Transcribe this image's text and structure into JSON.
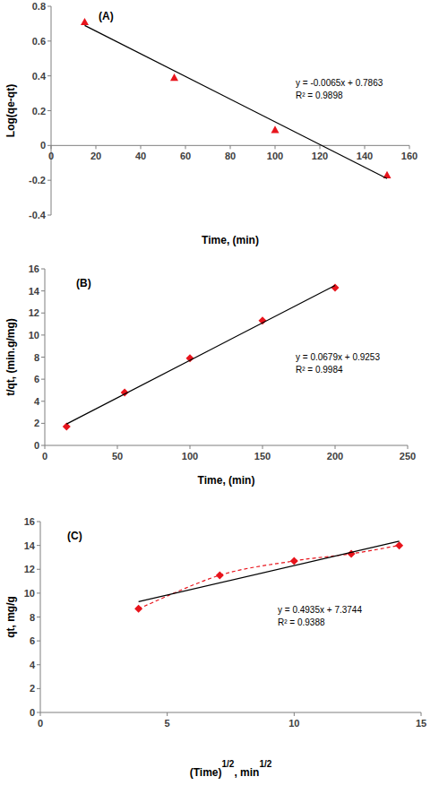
{
  "chart_data": [
    {
      "type": "scatter",
      "title": "(A)",
      "xlabel": "Time, (min)",
      "ylabel": "Log(qe-qt)",
      "xlim": [
        0,
        160
      ],
      "ylim": [
        -0.4,
        0.8
      ],
      "xticks": [
        0,
        20,
        40,
        60,
        80,
        100,
        120,
        140,
        160
      ],
      "yticks": [
        -0.4,
        -0.2,
        0,
        0.2,
        0.4,
        0.6,
        0.8
      ],
      "grid": false,
      "annotations": [
        "y = -0.0065x + 0.7863",
        "R² = 0.9898"
      ],
      "series": [
        {
          "type": "scatter",
          "marker": "triangle",
          "color": "#e8141c",
          "x": [
            15,
            55,
            100,
            150
          ],
          "values": [
            0.71,
            0.39,
            0.09,
            -0.17
          ]
        },
        {
          "type": "line",
          "line_style": "solid",
          "color": "#000000",
          "x": [
            15,
            150
          ],
          "values": [
            0.69,
            -0.19
          ]
        }
      ]
    },
    {
      "type": "scatter",
      "title": "(B)",
      "xlabel": "Time, (min)",
      "ylabel": "t/qt, (min.g/mg)",
      "xlim": [
        0,
        250
      ],
      "ylim": [
        0,
        16
      ],
      "xticks": [
        0,
        50,
        100,
        150,
        200,
        250
      ],
      "yticks": [
        0,
        2,
        4,
        6,
        8,
        10,
        12,
        14,
        16
      ],
      "grid": false,
      "annotations": [
        "y = 0.0679x + 0.9253",
        "R² = 0.9984"
      ],
      "series": [
        {
          "type": "scatter",
          "marker": "diamond",
          "color": "#e8141c",
          "x": [
            15,
            55,
            100,
            150,
            200
          ],
          "values": [
            1.7,
            4.8,
            7.9,
            11.3,
            14.3
          ]
        },
        {
          "type": "line",
          "line_style": "solid",
          "color": "#000000",
          "x": [
            15,
            200
          ],
          "values": [
            1.94,
            14.5
          ]
        }
      ]
    },
    {
      "type": "scatter",
      "title": "(C)",
      "xlabel": [
        "(Time)",
        "1/2",
        ", min",
        "1/2"
      ],
      "ylabel": "qt, mg/g",
      "xlim": [
        0,
        15
      ],
      "ylim": [
        0,
        16
      ],
      "xticks": [
        0,
        5,
        10,
        15
      ],
      "yticks": [
        0,
        2,
        4,
        6,
        8,
        10,
        12,
        14,
        16
      ],
      "grid": false,
      "annotations": [
        "y = 0.4935x + 7.3744",
        "R² = 0.9388"
      ],
      "series": [
        {
          "type": "scatter",
          "marker": "diamond",
          "color": "#e8141c",
          "x": [
            3.87,
            7.07,
            10,
            12.25,
            14.14
          ],
          "values": [
            8.7,
            11.5,
            12.7,
            13.3,
            14.0
          ]
        },
        {
          "type": "line",
          "line_style": "dashed",
          "color": "#e8141c",
          "x": [
            3.87,
            7.07,
            10,
            12.25,
            14.14
          ],
          "values": [
            8.7,
            11.5,
            12.7,
            13.3,
            14.0
          ]
        },
        {
          "type": "line",
          "line_style": "solid",
          "color": "#000000",
          "x": [
            3.87,
            14.14
          ],
          "values": [
            9.28,
            14.35
          ]
        }
      ]
    }
  ]
}
